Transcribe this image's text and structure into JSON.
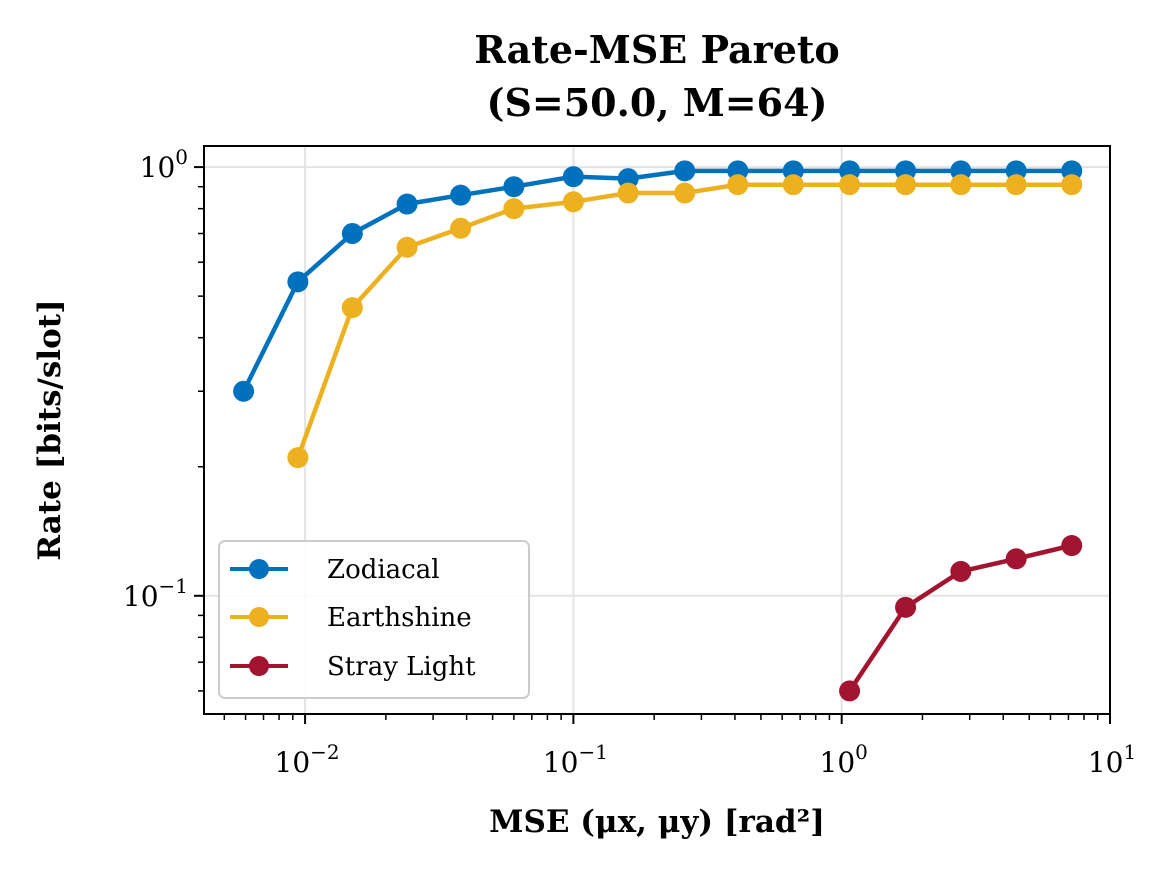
{
  "chart_data": {
    "type": "line",
    "title_line1": "Rate-MSE Pareto",
    "title_line2": "(S=50.0, M=64)",
    "xlabel": "MSE (μx, μy) [rad²]",
    "ylabel": "Rate [bits/slot]",
    "xscale": "log",
    "yscale": "log",
    "xlim": [
      0.0042,
      10
    ],
    "ylim": [
      0.053,
      1.12
    ],
    "grid": true,
    "legend_position": "lower-left",
    "x_ticks": [
      {
        "base": "10",
        "exp": "−2",
        "value": 0.01
      },
      {
        "base": "10",
        "exp": "−1",
        "value": 0.1
      },
      {
        "base": "10",
        "exp": "0",
        "value": 1
      },
      {
        "base": "10",
        "exp": "1",
        "value": 10
      }
    ],
    "y_ticks": [
      {
        "base": "10",
        "exp": "−1",
        "value": 0.1
      },
      {
        "base": "10",
        "exp": "0",
        "value": 1
      }
    ],
    "series": [
      {
        "name": "Zodiacal",
        "color": "#0072bd",
        "x": [
          0.0059,
          0.0094,
          0.015,
          0.024,
          0.038,
          0.06,
          0.1,
          0.16,
          0.26,
          0.41,
          0.66,
          1.07,
          1.73,
          2.78,
          4.47,
          7.2
        ],
        "y": [
          0.3,
          0.54,
          0.7,
          0.82,
          0.86,
          0.9,
          0.95,
          0.94,
          0.98,
          0.98,
          0.98,
          0.98,
          0.98,
          0.98,
          0.98,
          0.98
        ]
      },
      {
        "name": "Earthshine",
        "color": "#edb120",
        "x": [
          0.0094,
          0.015,
          0.024,
          0.038,
          0.06,
          0.1,
          0.16,
          0.26,
          0.41,
          0.66,
          1.07,
          1.73,
          2.78,
          4.47,
          7.2
        ],
        "y": [
          0.21,
          0.47,
          0.65,
          0.72,
          0.8,
          0.83,
          0.87,
          0.87,
          0.91,
          0.91,
          0.91,
          0.91,
          0.91,
          0.91,
          0.91
        ]
      },
      {
        "name": "Stray Light",
        "color": "#a2142f",
        "x": [
          1.07,
          1.73,
          2.78,
          4.47,
          7.2
        ],
        "y": [
          0.06,
          0.094,
          0.114,
          0.122,
          0.131
        ]
      }
    ]
  }
}
